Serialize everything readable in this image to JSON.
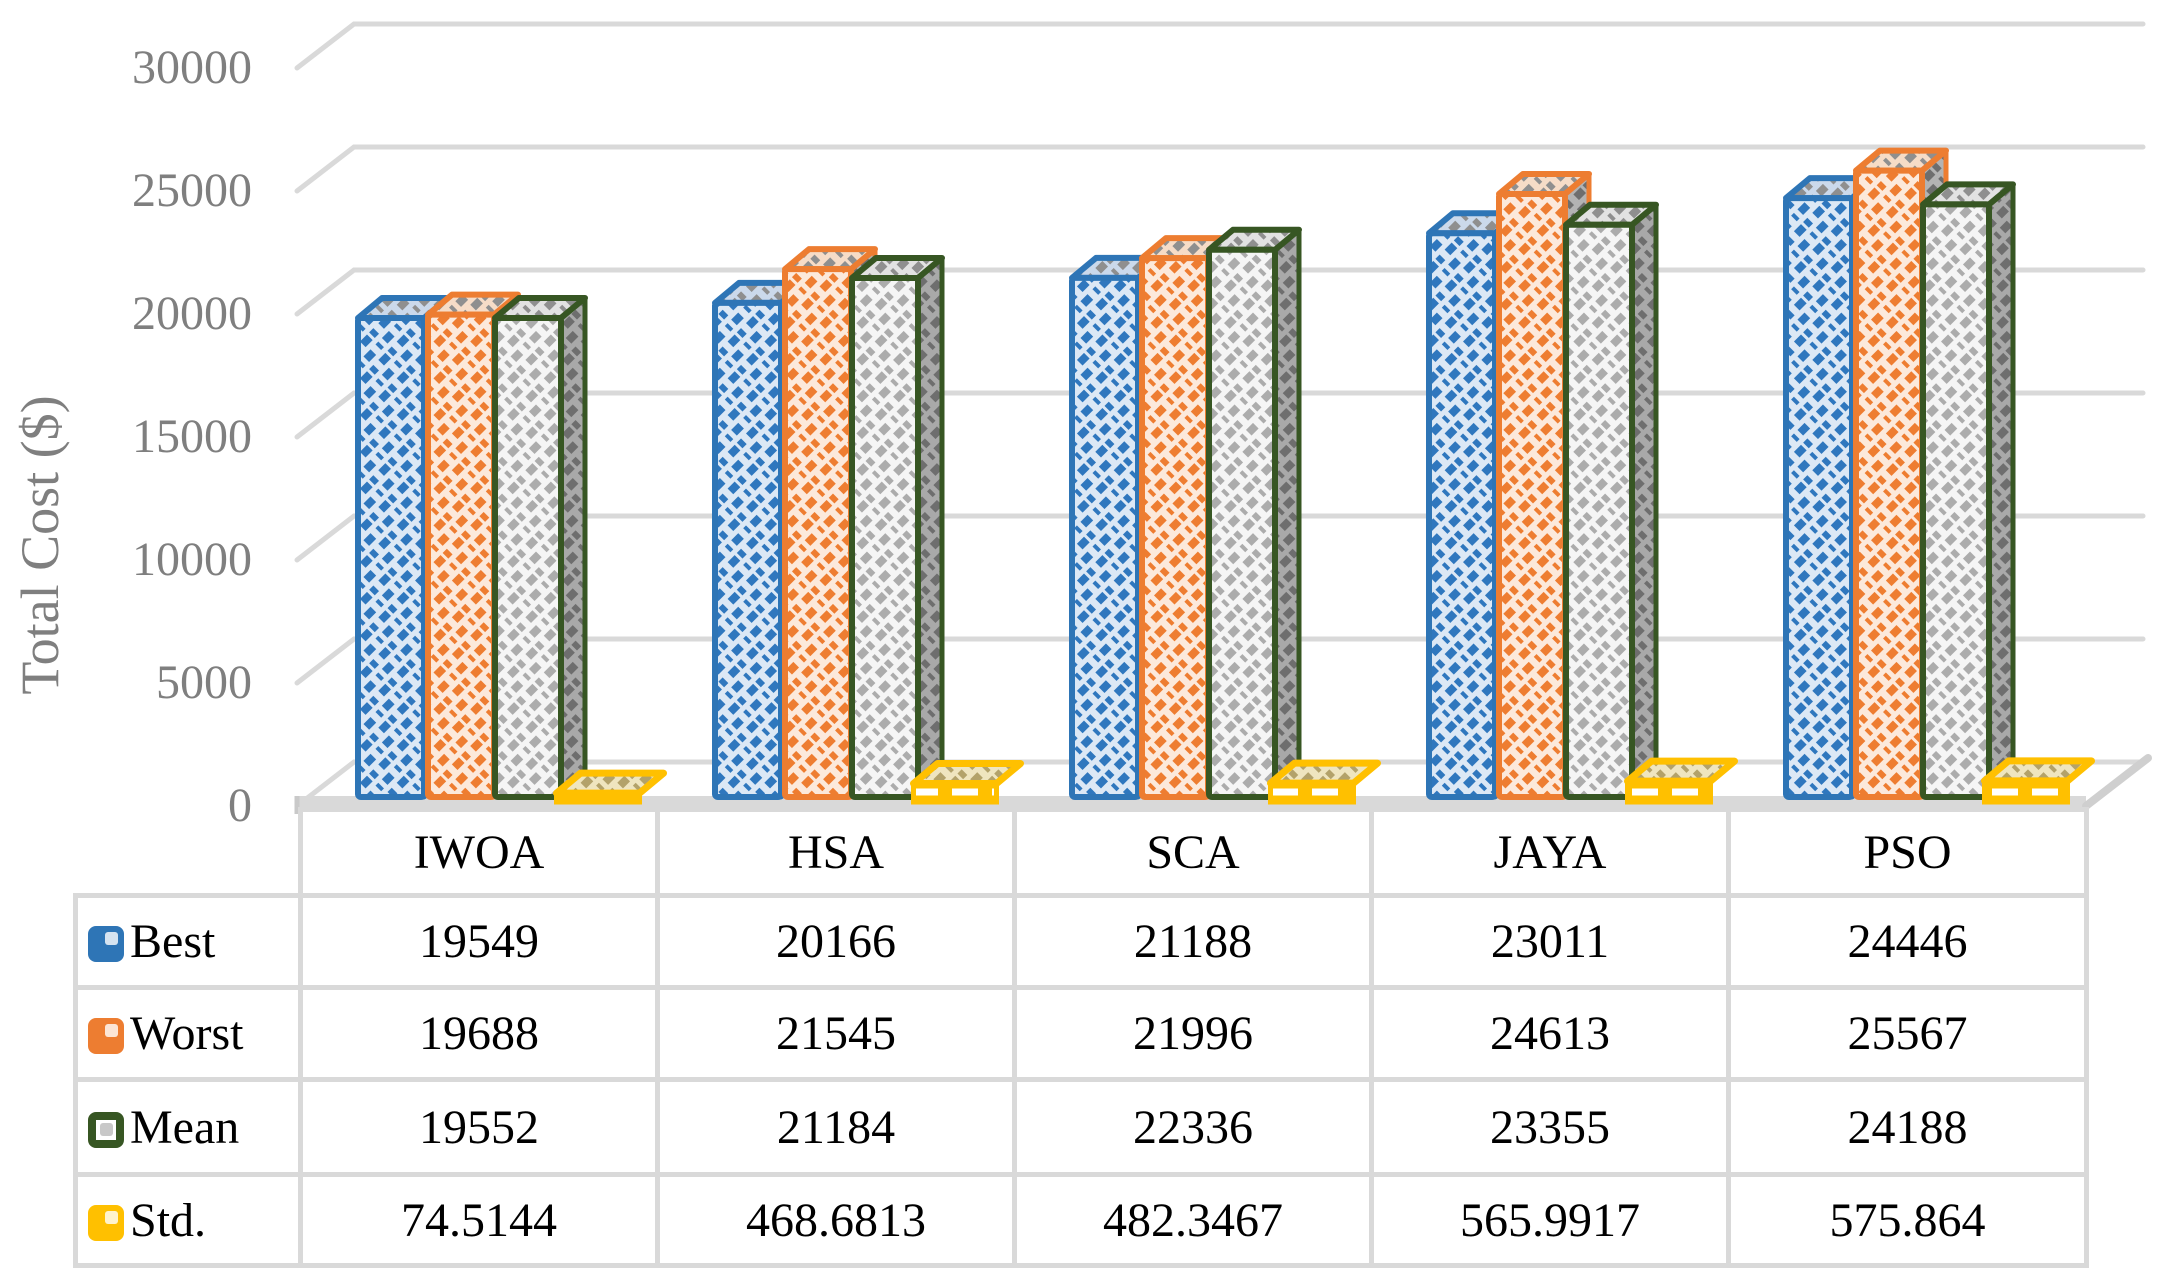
{
  "chart_data": {
    "type": "bar",
    "variant": "3d-clustered-column-with-data-table",
    "title": "",
    "ylabel": "Total Cost ($)",
    "xlabel": "",
    "ylim": [
      0,
      30000
    ],
    "yticks": [
      0,
      5000,
      10000,
      15000,
      20000,
      25000,
      30000
    ],
    "grid": true,
    "legend_position": "data-table-left",
    "categories": [
      "IWOA",
      "HSA",
      "SCA",
      "JAYA",
      "PSO"
    ],
    "series": [
      {
        "name": "Best",
        "color": "#2E75B6",
        "values": [
          19549,
          20166,
          21188,
          23011,
          24446
        ]
      },
      {
        "name": "Worst",
        "color": "#ED7D31",
        "values": [
          19688,
          21545,
          21996,
          24613,
          25567
        ]
      },
      {
        "name": "Mean",
        "color": "#375623",
        "values": [
          19552,
          21184,
          22336,
          23355,
          24188
        ]
      },
      {
        "name": "Std.",
        "color": "#FFC000",
        "values": [
          74.5144,
          468.6813,
          482.3467,
          565.9917,
          575.864
        ]
      }
    ]
  },
  "colors": {
    "gridline": "#D9D9D9",
    "axis_text": "#7F7F7F",
    "table_border": "#D9D9D9",
    "table_text": "#000000",
    "floor": "#D9D9D9"
  }
}
